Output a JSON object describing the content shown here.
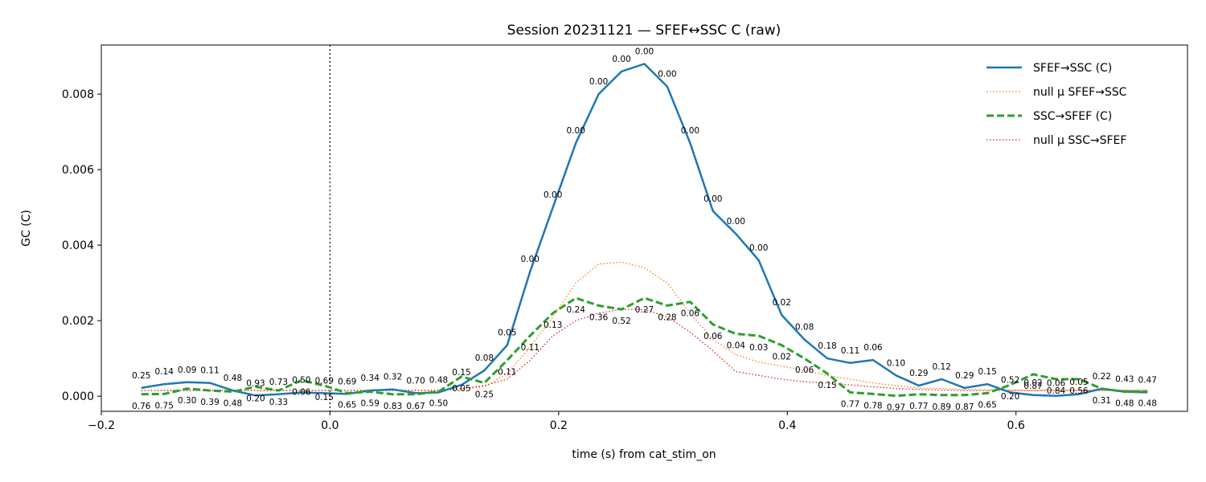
{
  "chart_data": {
    "type": "line",
    "title": "Session 20231121 — SFEF↔SSC C (raw)",
    "xlabel": "time (s) from cat_stim_on",
    "ylabel": "GC (C)",
    "xlim": [
      -0.2,
      0.75
    ],
    "ylim": [
      -0.0004,
      0.0093
    ],
    "x_ticks": [
      -0.2,
      0.0,
      0.2,
      0.4,
      0.6
    ],
    "x_tick_labels": [
      "−0.2",
      "0.0",
      "0.2",
      "0.4",
      "0.6"
    ],
    "y_ticks": [
      0.0,
      0.002,
      0.004,
      0.006,
      0.008
    ],
    "y_tick_labels": [
      "0.000",
      "0.002",
      "0.004",
      "0.006",
      "0.008"
    ],
    "vline_x": 0.0,
    "grid": false,
    "legend_position": "top-right",
    "x": [
      -0.165,
      -0.145,
      -0.125,
      -0.105,
      -0.085,
      -0.065,
      -0.045,
      -0.025,
      -0.005,
      0.015,
      0.035,
      0.055,
      0.075,
      0.095,
      0.115,
      0.135,
      0.155,
      0.175,
      0.195,
      0.215,
      0.235,
      0.255,
      0.275,
      0.295,
      0.315,
      0.335,
      0.355,
      0.375,
      0.395,
      0.415,
      0.435,
      0.455,
      0.475,
      0.495,
      0.515,
      0.535,
      0.555,
      0.575,
      0.595,
      0.615,
      0.635,
      0.655,
      0.675,
      0.695,
      0.715
    ],
    "series": [
      {
        "name": "SFEF→SSC (C)",
        "color": "#1f77b4",
        "style": "solid",
        "values": [
          0.00022,
          0.00032,
          0.00037,
          0.00035,
          0.00015,
          2e-05,
          5e-05,
          0.0001,
          8e-05,
          6e-05,
          0.00015,
          0.00018,
          8e-05,
          0.0001,
          0.0003,
          0.00068,
          0.00135,
          0.0033,
          0.005,
          0.0067,
          0.008,
          0.0086,
          0.0088,
          0.0082,
          0.0067,
          0.0049,
          0.0043,
          0.0036,
          0.00215,
          0.0015,
          0.001,
          0.00088,
          0.00096,
          0.00055,
          0.00028,
          0.00045,
          0.00022,
          0.00032,
          0.0001,
          3e-05,
          1e-05,
          5e-05,
          0.0002,
          0.00012,
          0.0001
        ],
        "p_values": [
          "0.25",
          "0.14",
          "0.09",
          "0.11",
          "0.48",
          "0.93",
          "0.73",
          "0.50",
          "0.69",
          "0.69",
          "0.34",
          "0.32",
          "0.70",
          "0.48",
          "0.15",
          "0.08",
          "0.05",
          "0.00",
          "0.00",
          "0.00",
          "0.00",
          "0.00",
          "0.00",
          "0.00",
          "0.00",
          "0.00",
          "0.00",
          "0.00",
          "0.02",
          "0.08",
          "0.18",
          "0.11",
          "0.06",
          "0.10",
          "0.29",
          "0.12",
          "0.29",
          "0.15",
          "0.52",
          "0.02",
          "0.06",
          "0.05",
          "0.22",
          "0.43",
          "0.47"
        ]
      },
      {
        "name": "null μ SFEF→SSC",
        "color": "#ff7f0e",
        "style": "dotted",
        "values": [
          0.00015,
          0.00016,
          0.00016,
          0.00016,
          0.00016,
          0.00016,
          0.00016,
          0.00016,
          0.00016,
          0.00016,
          0.00016,
          0.00016,
          0.00016,
          0.00016,
          0.00018,
          0.00025,
          0.0006,
          0.0013,
          0.0021,
          0.003,
          0.0035,
          0.00355,
          0.0034,
          0.003,
          0.0022,
          0.0015,
          0.0011,
          0.0009,
          0.0008,
          0.00068,
          0.00055,
          0.00045,
          0.00035,
          0.00028,
          0.00022,
          0.0002,
          0.00018,
          0.00017,
          0.00016,
          0.00016,
          0.00016,
          0.00016,
          0.00016,
          0.00016,
          0.00016
        ]
      },
      {
        "name": "SSC→SFEF (C)",
        "color": "#2ca02c",
        "style": "dashed",
        "values": [
          5e-05,
          6e-05,
          0.0002,
          0.00015,
          0.00012,
          0.00025,
          0.00015,
          0.00042,
          0.00028,
          8e-05,
          0.00012,
          5e-05,
          5e-05,
          0.00012,
          0.00052,
          0.00035,
          0.00095,
          0.0016,
          0.0022,
          0.0026,
          0.0024,
          0.0023,
          0.0026,
          0.0024,
          0.0025,
          0.0019,
          0.00165,
          0.0016,
          0.00135,
          0.001,
          0.0006,
          0.0001,
          6e-05,
          1e-05,
          5e-05,
          3e-05,
          3e-05,
          8e-05,
          0.0003,
          0.00058,
          0.00045,
          0.00045,
          0.0002,
          0.00012,
          0.00012
        ],
        "p_values": [
          "0.76",
          "0.75",
          "0.30",
          "0.39",
          "0.48",
          "0.20",
          "0.33",
          "0.06",
          "0.15",
          "0.65",
          "0.59",
          "0.83",
          "0.67",
          "0.50",
          "0.05",
          "0.25",
          "0.11",
          "0.11",
          "0.13",
          "0.24",
          "0.36",
          "0.52",
          "0.27",
          "0.28",
          "0.06",
          "0.06",
          "0.04",
          "0.03",
          "0.02",
          "0.06",
          "0.15",
          "0.77",
          "0.78",
          "0.97",
          "0.77",
          "0.89",
          "0.87",
          "0.65",
          "0.20",
          "0.87",
          "0.84",
          "0.56",
          "0.31",
          "0.48",
          "0.48"
        ]
      },
      {
        "name": "null μ SSC→SFEF",
        "color": "#d62728",
        "style": "dotted",
        "values": [
          0.00015,
          0.00015,
          0.00015,
          0.00015,
          0.00015,
          0.00015,
          0.00015,
          0.00015,
          0.00015,
          0.00015,
          0.00015,
          0.00015,
          0.00015,
          0.00015,
          0.0002,
          0.00028,
          0.00045,
          0.00095,
          0.0016,
          0.002,
          0.0022,
          0.0023,
          0.0023,
          0.0021,
          0.0017,
          0.0012,
          0.00065,
          0.00055,
          0.00045,
          0.00038,
          0.00035,
          0.0003,
          0.00025,
          0.0002,
          0.00018,
          0.00016,
          0.00015,
          0.00015,
          0.00015,
          0.00015,
          0.00015,
          0.00015,
          0.00015,
          0.00015,
          0.00015
        ]
      }
    ]
  }
}
